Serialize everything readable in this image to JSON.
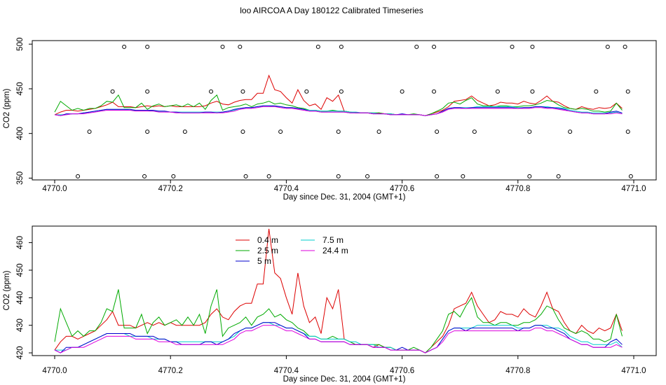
{
  "title": "loo AIRCOA A  Day 180122  Calibrated Timeseries",
  "colors": {
    "0.4 m": "#dd0000",
    "2.5 m": "#00aa00",
    "5 m": "#0000cc",
    "7.5 m": "#00cccc",
    "24.4 m": "#dd00dd"
  },
  "chart_data": [
    {
      "type": "line",
      "panel": "top",
      "xlabel": "Day since Dec. 31, 2004 (GMT+1)",
      "ylabel": "CO2 (ppm)",
      "xlim": [
        4769.98,
        4771.02
      ],
      "ylim": [
        348,
        504
      ],
      "xticks": [
        4770.0,
        4770.2,
        4770.4,
        4770.6,
        4770.8,
        4771.0
      ],
      "xtick_labels": [
        "4770.0",
        "4770.2",
        "4770.4",
        "4770.6",
        "4770.8",
        "4771.0"
      ],
      "yticks": [
        350,
        400,
        450,
        500
      ],
      "ytick_labels": [
        "350",
        "400",
        "450",
        "500"
      ],
      "legend": "none",
      "points": [
        {
          "x": 4770.04,
          "y": 352
        },
        {
          "x": 4770.06,
          "y": 402
        },
        {
          "x": 4770.1,
          "y": 447
        },
        {
          "x": 4770.12,
          "y": 497
        },
        {
          "x": 4770.155,
          "y": 352
        },
        {
          "x": 4770.16,
          "y": 402
        },
        {
          "x": 4770.16,
          "y": 447
        },
        {
          "x": 4770.16,
          "y": 497
        },
        {
          "x": 4770.205,
          "y": 352
        },
        {
          "x": 4770.225,
          "y": 402
        },
        {
          "x": 4770.27,
          "y": 447
        },
        {
          "x": 4770.29,
          "y": 497
        },
        {
          "x": 4770.32,
          "y": 497
        },
        {
          "x": 4770.325,
          "y": 447
        },
        {
          "x": 4770.325,
          "y": 402
        },
        {
          "x": 4770.33,
          "y": 352
        },
        {
          "x": 4770.37,
          "y": 352
        },
        {
          "x": 4770.39,
          "y": 402
        },
        {
          "x": 4770.435,
          "y": 447
        },
        {
          "x": 4770.455,
          "y": 497
        },
        {
          "x": 4770.49,
          "y": 352
        },
        {
          "x": 4770.49,
          "y": 402
        },
        {
          "x": 4770.495,
          "y": 447
        },
        {
          "x": 4770.495,
          "y": 497
        },
        {
          "x": 4770.54,
          "y": 352
        },
        {
          "x": 4770.56,
          "y": 402
        },
        {
          "x": 4770.6,
          "y": 447
        },
        {
          "x": 4770.625,
          "y": 497
        },
        {
          "x": 4770.655,
          "y": 497
        },
        {
          "x": 4770.655,
          "y": 447
        },
        {
          "x": 4770.66,
          "y": 402
        },
        {
          "x": 4770.66,
          "y": 352
        },
        {
          "x": 4770.705,
          "y": 352
        },
        {
          "x": 4770.725,
          "y": 402
        },
        {
          "x": 4770.765,
          "y": 447
        },
        {
          "x": 4770.79,
          "y": 497
        },
        {
          "x": 4770.82,
          "y": 352
        },
        {
          "x": 4770.82,
          "y": 402
        },
        {
          "x": 4770.825,
          "y": 447
        },
        {
          "x": 4770.825,
          "y": 497
        },
        {
          "x": 4770.87,
          "y": 352
        },
        {
          "x": 4770.89,
          "y": 402
        },
        {
          "x": 4770.935,
          "y": 447
        },
        {
          "x": 4770.955,
          "y": 497
        },
        {
          "x": 4770.985,
          "y": 497
        },
        {
          "x": 4770.99,
          "y": 447
        },
        {
          "x": 4770.99,
          "y": 402
        },
        {
          "x": 4770.995,
          "y": 352
        }
      ],
      "x": [
        4770.0,
        4770.01,
        4770.02,
        4770.03,
        4770.04,
        4770.05,
        4770.06,
        4770.07,
        4770.08,
        4770.09,
        4770.1,
        4770.11,
        4770.12,
        4770.13,
        4770.14,
        4770.15,
        4770.16,
        4770.17,
        4770.18,
        4770.19,
        4770.2,
        4770.21,
        4770.22,
        4770.23,
        4770.24,
        4770.25,
        4770.26,
        4770.27,
        4770.28,
        4770.29,
        4770.3,
        4770.31,
        4770.32,
        4770.33,
        4770.34,
        4770.35,
        4770.36,
        4770.37,
        4770.38,
        4770.39,
        4770.4,
        4770.41,
        4770.42,
        4770.43,
        4770.44,
        4770.45,
        4770.46,
        4770.47,
        4770.48,
        4770.49,
        4770.5,
        4770.51,
        4770.52,
        4770.53,
        4770.54,
        4770.55,
        4770.56,
        4770.57,
        4770.58,
        4770.59,
        4770.6,
        4770.61,
        4770.62,
        4770.63,
        4770.64,
        4770.65,
        4770.66,
        4770.67,
        4770.68,
        4770.69,
        4770.7,
        4770.71,
        4770.72,
        4770.73,
        4770.74,
        4770.75,
        4770.76,
        4770.77,
        4770.78,
        4770.79,
        4770.8,
        4770.81,
        4770.82,
        4770.83,
        4770.84,
        4770.85,
        4770.86,
        4770.87,
        4770.88,
        4770.89,
        4770.9,
        4770.91,
        4770.92,
        4770.93,
        4770.94,
        4770.95,
        4770.96,
        4770.97,
        4770.98
      ],
      "series": [
        {
          "name": "0.4 m",
          "values": [
            421,
            424,
            426,
            426,
            425,
            426,
            427,
            428,
            430,
            432,
            435,
            430,
            430,
            430,
            429,
            430,
            431,
            430,
            431,
            430,
            431,
            430,
            430,
            430,
            430,
            430,
            431,
            434,
            436,
            433,
            432,
            435,
            437,
            438,
            438,
            445,
            445,
            465,
            449,
            447,
            440,
            434,
            449,
            437,
            431,
            433,
            427,
            440,
            436,
            443,
            425,
            424,
            423,
            423,
            423,
            422,
            423,
            422,
            422,
            421,
            421,
            421,
            421,
            421,
            420,
            422,
            424,
            426,
            430,
            436,
            437,
            438,
            442,
            437,
            434,
            431,
            432,
            435,
            434,
            434,
            433,
            436,
            434,
            433,
            437,
            442,
            436,
            435,
            431,
            428,
            427,
            430,
            428,
            427,
            429,
            428,
            429,
            434,
            428
          ]
        },
        {
          "name": "2.5 m",
          "values": [
            424,
            436,
            431,
            426,
            428,
            426,
            428,
            428,
            431,
            436,
            435,
            443,
            429,
            429,
            429,
            434,
            427,
            431,
            433,
            430,
            431,
            432,
            430,
            433,
            430,
            434,
            427,
            437,
            443,
            426,
            429,
            430,
            431,
            433,
            430,
            433,
            434,
            436,
            433,
            434,
            432,
            431,
            429,
            428,
            426,
            426,
            425,
            425,
            426,
            425,
            425,
            424,
            423,
            423,
            423,
            423,
            423,
            422,
            422,
            421,
            421,
            421,
            422,
            421,
            420,
            422,
            425,
            428,
            434,
            435,
            433,
            437,
            440,
            433,
            431,
            431,
            430,
            431,
            431,
            430,
            430,
            431,
            431,
            432,
            434,
            437,
            436,
            432,
            429,
            428,
            427,
            428,
            427,
            425,
            425,
            424,
            425,
            434,
            426
          ]
        },
        {
          "name": "5 m",
          "values": [
            421,
            420,
            422,
            422,
            422,
            423,
            424,
            425,
            426,
            427,
            427,
            427,
            427,
            427,
            426,
            426,
            426,
            426,
            425,
            425,
            424,
            424,
            423,
            423,
            423,
            423,
            424,
            424,
            423,
            424,
            425,
            427,
            428,
            429,
            429,
            430,
            431,
            431,
            431,
            430,
            429,
            429,
            428,
            427,
            425,
            425,
            424,
            424,
            424,
            424,
            424,
            423,
            423,
            423,
            423,
            422,
            422,
            422,
            421,
            421,
            422,
            421,
            421,
            421,
            420,
            421,
            422,
            425,
            428,
            429,
            429,
            428,
            429,
            429,
            429,
            429,
            429,
            429,
            429,
            429,
            428,
            429,
            429,
            430,
            430,
            429,
            429,
            428,
            427,
            425,
            424,
            423,
            423,
            422,
            422,
            422,
            424,
            425,
            423
          ]
        },
        {
          "name": "7.5 m",
          "values": [
            421,
            421,
            421,
            422,
            422,
            423,
            424,
            425,
            426,
            427,
            427,
            427,
            427,
            426,
            426,
            426,
            426,
            425,
            425,
            425,
            424,
            424,
            424,
            424,
            424,
            424,
            424,
            424,
            424,
            424,
            425,
            426,
            428,
            429,
            429,
            430,
            431,
            431,
            430,
            430,
            429,
            429,
            428,
            427,
            426,
            426,
            425,
            425,
            425,
            425,
            425,
            424,
            424,
            423,
            423,
            423,
            422,
            422,
            422,
            421,
            421,
            421,
            421,
            421,
            420,
            421,
            422,
            425,
            428,
            429,
            429,
            429,
            429,
            430,
            430,
            430,
            430,
            430,
            430,
            430,
            429,
            429,
            429,
            430,
            430,
            430,
            429,
            429,
            428,
            426,
            425,
            424,
            424,
            423,
            423,
            423,
            423,
            424,
            422
          ]
        },
        {
          "name": "24.4 m",
          "values": [
            421,
            420,
            421,
            422,
            422,
            422,
            423,
            424,
            425,
            426,
            426,
            426,
            426,
            426,
            425,
            425,
            425,
            425,
            424,
            424,
            424,
            423,
            423,
            423,
            423,
            423,
            423,
            423,
            423,
            423,
            424,
            425,
            427,
            428,
            428,
            429,
            430,
            430,
            430,
            429,
            428,
            428,
            427,
            426,
            425,
            425,
            424,
            424,
            424,
            424,
            424,
            423,
            423,
            423,
            423,
            422,
            422,
            422,
            421,
            421,
            421,
            421,
            421,
            421,
            420,
            421,
            422,
            424,
            427,
            428,
            428,
            428,
            428,
            428,
            428,
            428,
            428,
            428,
            428,
            428,
            428,
            428,
            428,
            429,
            429,
            428,
            428,
            427,
            426,
            425,
            424,
            423,
            423,
            422,
            422,
            422,
            422,
            423,
            422
          ]
        }
      ]
    },
    {
      "type": "line",
      "panel": "bottom",
      "xlabel": "Day since Dec. 31, 2004 (GMT+1)",
      "ylabel": "CO2 (ppm)",
      "xlim": [
        4769.98,
        4771.02
      ],
      "ylim": [
        419,
        466
      ],
      "xticks": [
        4770.0,
        4770.2,
        4770.4,
        4770.6,
        4770.8,
        4771.0
      ],
      "xtick_labels": [
        "4770.0",
        "4770.2",
        "4770.4",
        "4770.6",
        "4770.8",
        "4771.0"
      ],
      "yticks": [
        420,
        430,
        440,
        450,
        460
      ],
      "ytick_labels": [
        "420",
        "430",
        "440",
        "450",
        "460"
      ],
      "legend": "top-center",
      "legend_labels": [
        "0.4 m",
        "2.5 m",
        "5 m",
        "7.5 m",
        "24.4 m"
      ]
    }
  ]
}
